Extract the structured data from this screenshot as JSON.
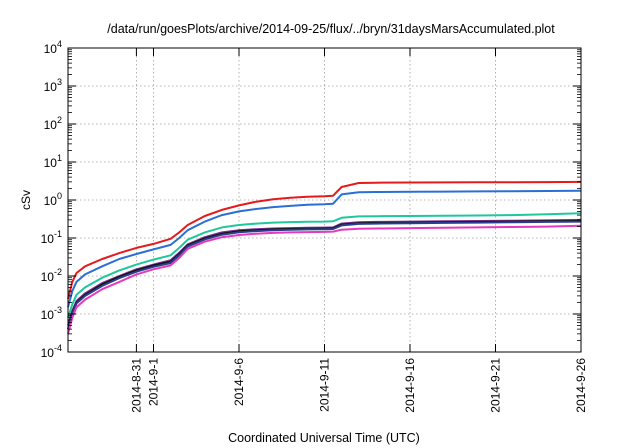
{
  "chart_data": {
    "type": "line",
    "title": "/data/run/goesPlots/archive/2014-09-25/flux/../bryn/31daysMarsAccumulated.plot",
    "xlabel": "Coordinated Universal Time (UTC)",
    "ylabel": "cSv",
    "y_scale": "log",
    "xlim": [
      "2014-08-27",
      "2014-09-26"
    ],
    "ylim": [
      0.0001,
      10000
    ],
    "grid": true,
    "x_ticks": [
      {
        "date": "2014-08-31",
        "label": "2014-8-31"
      },
      {
        "date": "2014-09-01",
        "label": "2014-9-1"
      },
      {
        "date": "2014-09-06",
        "label": "2014-9-6"
      },
      {
        "date": "2014-09-11",
        "label": "2014-9-11"
      },
      {
        "date": "2014-09-16",
        "label": "2014-9-16"
      },
      {
        "date": "2014-09-21",
        "label": "2014-9-21"
      },
      {
        "date": "2014-09-26",
        "label": "2014-9-26"
      }
    ],
    "y_ticks": [
      {
        "value": 0.0001,
        "base": "10",
        "exp": "-4"
      },
      {
        "value": 0.001,
        "base": "10",
        "exp": "-3"
      },
      {
        "value": 0.01,
        "base": "10",
        "exp": "-2"
      },
      {
        "value": 0.1,
        "base": "10",
        "exp": "-1"
      },
      {
        "value": 1,
        "base": "10",
        "exp": "0"
      },
      {
        "value": 10,
        "base": "10",
        "exp": "1"
      },
      {
        "value": 100,
        "base": "10",
        "exp": "2"
      },
      {
        "value": 1000,
        "base": "10",
        "exp": "3"
      },
      {
        "value": 10000,
        "base": "10",
        "exp": "4"
      }
    ],
    "x": [
      "2014-08-27",
      "2014-08-27T06:00",
      "2014-08-27T12:00",
      "2014-08-28",
      "2014-08-29",
      "2014-08-30",
      "2014-08-31",
      "2014-09-01",
      "2014-09-02",
      "2014-09-02T12:00",
      "2014-09-03",
      "2014-09-04",
      "2014-09-05",
      "2014-09-06",
      "2014-09-07",
      "2014-09-08",
      "2014-09-09",
      "2014-09-10",
      "2014-09-11",
      "2014-09-11T12:00",
      "2014-09-12",
      "2014-09-13",
      "2014-09-14",
      "2014-09-16",
      "2014-09-18",
      "2014-09-20",
      "2014-09-22",
      "2014-09-24",
      "2014-09-26"
    ],
    "series": [
      {
        "color": "#e41a1c",
        "values": [
          0.0025,
          0.007,
          0.012,
          0.018,
          0.028,
          0.04,
          0.055,
          0.07,
          0.095,
          0.14,
          0.22,
          0.38,
          0.55,
          0.72,
          0.9,
          1.05,
          1.15,
          1.22,
          1.25,
          1.3,
          2.2,
          2.8,
          2.85,
          2.88,
          2.9,
          2.92,
          2.93,
          2.95,
          3.0
        ]
      },
      {
        "color": "#2a6fd6",
        "values": [
          0.0015,
          0.004,
          0.007,
          0.011,
          0.018,
          0.028,
          0.038,
          0.05,
          0.066,
          0.1,
          0.16,
          0.27,
          0.4,
          0.5,
          0.58,
          0.65,
          0.7,
          0.75,
          0.77,
          0.8,
          1.4,
          1.6,
          1.62,
          1.64,
          1.66,
          1.68,
          1.7,
          1.72,
          1.75
        ]
      },
      {
        "color": "#1fc79b",
        "values": [
          0.0008,
          0.0018,
          0.0032,
          0.005,
          0.009,
          0.014,
          0.02,
          0.027,
          0.035,
          0.055,
          0.09,
          0.14,
          0.19,
          0.22,
          0.24,
          0.255,
          0.262,
          0.268,
          0.27,
          0.275,
          0.34,
          0.37,
          0.375,
          0.38,
          0.385,
          0.39,
          0.4,
          0.42,
          0.45
        ]
      },
      {
        "color": "#7b2d8e",
        "values": [
          0.0005,
          0.0012,
          0.0022,
          0.0035,
          0.0065,
          0.01,
          0.015,
          0.02,
          0.026,
          0.041,
          0.068,
          0.105,
          0.14,
          0.16,
          0.17,
          0.178,
          0.182,
          0.186,
          0.188,
          0.19,
          0.24,
          0.26,
          0.265,
          0.27,
          0.275,
          0.28,
          0.285,
          0.29,
          0.3
        ]
      },
      {
        "color": "#111111",
        "values": [
          0.0004,
          0.0011,
          0.002,
          0.0032,
          0.006,
          0.0095,
          0.014,
          0.019,
          0.024,
          0.038,
          0.064,
          0.098,
          0.13,
          0.15,
          0.16,
          0.168,
          0.172,
          0.176,
          0.178,
          0.18,
          0.225,
          0.245,
          0.25,
          0.255,
          0.26,
          0.265,
          0.27,
          0.275,
          0.28
        ]
      },
      {
        "color": "#27408b",
        "values": [
          0.0004,
          0.001,
          0.0019,
          0.003,
          0.0055,
          0.0088,
          0.013,
          0.0175,
          0.022,
          0.035,
          0.06,
          0.092,
          0.122,
          0.142,
          0.152,
          0.16,
          0.164,
          0.168,
          0.17,
          0.172,
          0.215,
          0.235,
          0.24,
          0.245,
          0.25,
          0.255,
          0.26,
          0.265,
          0.27
        ]
      },
      {
        "color": "#e639c0",
        "values": [
          0.0003,
          0.0008,
          0.0015,
          0.0024,
          0.0045,
          0.007,
          0.011,
          0.015,
          0.019,
          0.03,
          0.052,
          0.08,
          0.105,
          0.12,
          0.13,
          0.136,
          0.14,
          0.143,
          0.145,
          0.147,
          0.165,
          0.175,
          0.178,
          0.182,
          0.186,
          0.19,
          0.195,
          0.2,
          0.21
        ]
      }
    ]
  }
}
